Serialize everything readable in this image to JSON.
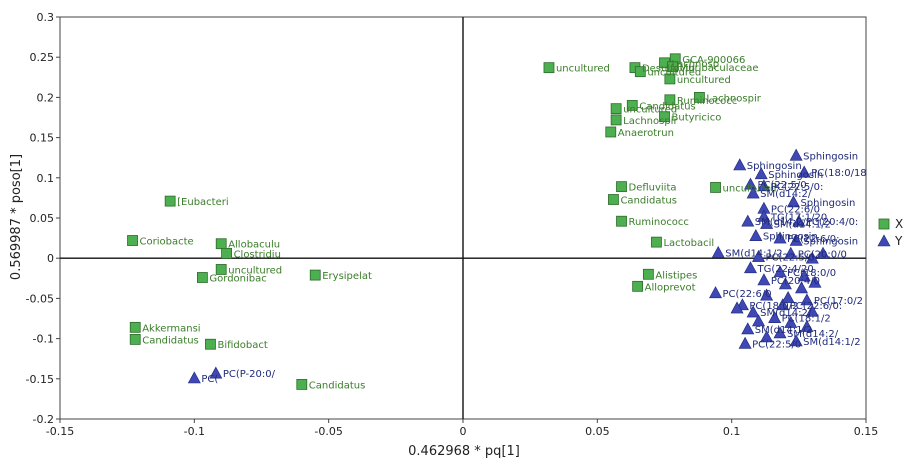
{
  "chart_data": {
    "type": "scatter",
    "title": "",
    "xlabel": "0.462968 * pq[1]",
    "ylabel": "0.569987 * poso[1]",
    "xlim": [
      -0.15,
      0.15
    ],
    "ylim": [
      -0.2,
      0.3
    ],
    "xticks": [
      "-0.15",
      "-0.1",
      "-0.05",
      "0",
      "0.05",
      "0.1",
      "0.15"
    ],
    "yticks": [
      "-0.2",
      "-0.15",
      "-0.1",
      "-0.05",
      "0",
      "0.05",
      "0.1",
      "0.15",
      "0.2",
      "0.25",
      "0.3"
    ],
    "grid": false,
    "zero_lines": true,
    "legend": {
      "position": "right",
      "entries": [
        {
          "name": "X",
          "marker": "square",
          "color": "#4caf50"
        },
        {
          "name": "Y",
          "marker": "triangle",
          "color": "#3f48b4"
        }
      ]
    },
    "series": [
      {
        "name": "X",
        "marker": "square",
        "color": "#4caf50",
        "label_color": "#3a7d2a",
        "points": [
          {
            "x": -0.109,
            "y": 0.071,
            "label": "[Eubacteri"
          },
          {
            "x": -0.123,
            "y": 0.022,
            "label": "Coriobacte"
          },
          {
            "x": -0.09,
            "y": 0.018,
            "label": "Allobaculu"
          },
          {
            "x": -0.088,
            "y": 0.006,
            "label": "Clostridiu"
          },
          {
            "x": -0.09,
            "y": -0.014,
            "label": "uncultured"
          },
          {
            "x": -0.097,
            "y": -0.024,
            "label": "Gordonibac"
          },
          {
            "x": -0.055,
            "y": -0.021,
            "label": "Erysipelat"
          },
          {
            "x": -0.122,
            "y": -0.086,
            "label": "Akkermansi"
          },
          {
            "x": -0.122,
            "y": -0.101,
            "label": "Candidatus"
          },
          {
            "x": -0.094,
            "y": -0.107,
            "label": "Bifidobact"
          },
          {
            "x": -0.06,
            "y": -0.157,
            "label": "Candidatus"
          },
          {
            "x": 0.032,
            "y": 0.237,
            "label": "uncultured"
          },
          {
            "x": 0.064,
            "y": 0.237,
            "label": "Desulfovib"
          },
          {
            "x": 0.066,
            "y": 0.232,
            "label": "uncultured"
          },
          {
            "x": 0.075,
            "y": 0.243,
            "label": "Lachnosp"
          },
          {
            "x": 0.079,
            "y": 0.248,
            "label": "GCA-900066"
          },
          {
            "x": 0.078,
            "y": 0.238,
            "label": "Muribaculaceae"
          },
          {
            "x": 0.077,
            "y": 0.223,
            "label": "uncultured"
          },
          {
            "x": 0.088,
            "y": 0.2,
            "label": "Lachnospir"
          },
          {
            "x": 0.077,
            "y": 0.197,
            "label": "Ruminococc"
          },
          {
            "x": 0.063,
            "y": 0.19,
            "label": "Candidatus"
          },
          {
            "x": 0.057,
            "y": 0.186,
            "label": "uncultured"
          },
          {
            "x": 0.075,
            "y": 0.176,
            "label": "Butyricico"
          },
          {
            "x": 0.057,
            "y": 0.172,
            "label": "Lachnospir"
          },
          {
            "x": 0.055,
            "y": 0.157,
            "label": "Anaerotrun"
          },
          {
            "x": 0.059,
            "y": 0.089,
            "label": "Defluviita"
          },
          {
            "x": 0.056,
            "y": 0.073,
            "label": "Candidatus"
          },
          {
            "x": 0.094,
            "y": 0.088,
            "label": "uncultured"
          },
          {
            "x": 0.059,
            "y": 0.046,
            "label": "Ruminococc"
          },
          {
            "x": 0.072,
            "y": 0.02,
            "label": "Lactobacil"
          },
          {
            "x": 0.069,
            "y": -0.02,
            "label": "Alistipes"
          },
          {
            "x": 0.065,
            "y": -0.035,
            "label": "Alloprevot"
          }
        ]
      },
      {
        "name": "Y",
        "marker": "triangle",
        "color": "#3f48b4",
        "label_color": "#1f2a7a",
        "points": [
          {
            "x": -0.1,
            "y": -0.149,
            "label": "PC("
          },
          {
            "x": -0.092,
            "y": -0.143,
            "label": "PC(P-20:0/"
          },
          {
            "x": 0.103,
            "y": 0.116,
            "label": "Sphingosin"
          },
          {
            "x": 0.124,
            "y": 0.128,
            "label": "Sphingosin"
          },
          {
            "x": 0.127,
            "y": 0.107,
            "label": "PC(18:0/18"
          },
          {
            "x": 0.111,
            "y": 0.105,
            "label": "Sphingosin"
          },
          {
            "x": 0.107,
            "y": 0.092,
            "label": "PC(22:5/0"
          },
          {
            "x": 0.112,
            "y": 0.09,
            "label": "PC(22:5/0:"
          },
          {
            "x": 0.108,
            "y": 0.081,
            "label": "SM(d14:2/"
          },
          {
            "x": 0.123,
            "y": 0.07,
            "label": "Sphingosin"
          },
          {
            "x": 0.112,
            "y": 0.062,
            "label": "PC(22:6/0"
          },
          {
            "x": 0.112,
            "y": 0.052,
            "label": "TG(17:1/20"
          },
          {
            "x": 0.106,
            "y": 0.046,
            "label": "SM(d14:2/"
          },
          {
            "x": 0.113,
            "y": 0.043,
            "label": "SM(d14:1/2"
          },
          {
            "x": 0.125,
            "y": 0.046,
            "label": "PC(20:4/0:"
          },
          {
            "x": 0.109,
            "y": 0.028,
            "label": "Sphingosin"
          },
          {
            "x": 0.118,
            "y": 0.025,
            "label": "PC(22:6/0:"
          },
          {
            "x": 0.124,
            "y": 0.022,
            "label": "Sphingosin"
          },
          {
            "x": 0.095,
            "y": 0.007,
            "label": "SM(d14:1/2"
          },
          {
            "x": 0.11,
            "y": 0.002,
            "label": "PC(22:5/0"
          },
          {
            "x": 0.122,
            "y": 0.006,
            "label": "PC(20:0/0"
          },
          {
            "x": 0.107,
            "y": -0.012,
            "label": "TG(22:4/20"
          },
          {
            "x": 0.118,
            "y": -0.017,
            "label": "PC(18:0/0"
          },
          {
            "x": 0.112,
            "y": -0.027,
            "label": "PC(20:4/0"
          },
          {
            "x": 0.094,
            "y": -0.043,
            "label": "PC(22:6/0"
          },
          {
            "x": 0.104,
            "y": -0.058,
            "label": "PC(18:0/2"
          },
          {
            "x": 0.119,
            "y": -0.058,
            "label": "PC(22:6/0:"
          },
          {
            "x": 0.128,
            "y": -0.052,
            "label": "PC(17:0/2"
          },
          {
            "x": 0.108,
            "y": -0.067,
            "label": "SM(d14:2/"
          },
          {
            "x": 0.116,
            "y": -0.074,
            "label": "PC(18:1/2"
          },
          {
            "x": 0.106,
            "y": -0.088,
            "label": "SM(d14:1/2"
          },
          {
            "x": 0.118,
            "y": -0.093,
            "label": "SM(d14:2/"
          },
          {
            "x": 0.105,
            "y": -0.106,
            "label": "PC(22:5/0"
          },
          {
            "x": 0.124,
            "y": -0.103,
            "label": "SM(d14:1/2"
          },
          {
            "x": 0.13,
            "y": 0.0,
            "label": ""
          },
          {
            "x": 0.134,
            "y": 0.006,
            "label": ""
          },
          {
            "x": 0.127,
            "y": -0.022,
            "label": ""
          },
          {
            "x": 0.131,
            "y": -0.03,
            "label": ""
          },
          {
            "x": 0.126,
            "y": -0.037,
            "label": ""
          },
          {
            "x": 0.113,
            "y": -0.046,
            "label": ""
          },
          {
            "x": 0.121,
            "y": -0.049,
            "label": ""
          },
          {
            "x": 0.102,
            "y": -0.062,
            "label": ""
          },
          {
            "x": 0.11,
            "y": -0.078,
            "label": ""
          },
          {
            "x": 0.122,
            "y": -0.08,
            "label": ""
          },
          {
            "x": 0.13,
            "y": -0.066,
            "label": ""
          },
          {
            "x": 0.113,
            "y": -0.098,
            "label": ""
          },
          {
            "x": 0.128,
            "y": -0.085,
            "label": ""
          },
          {
            "x": 0.12,
            "y": -0.032,
            "label": ""
          }
        ]
      }
    ]
  }
}
